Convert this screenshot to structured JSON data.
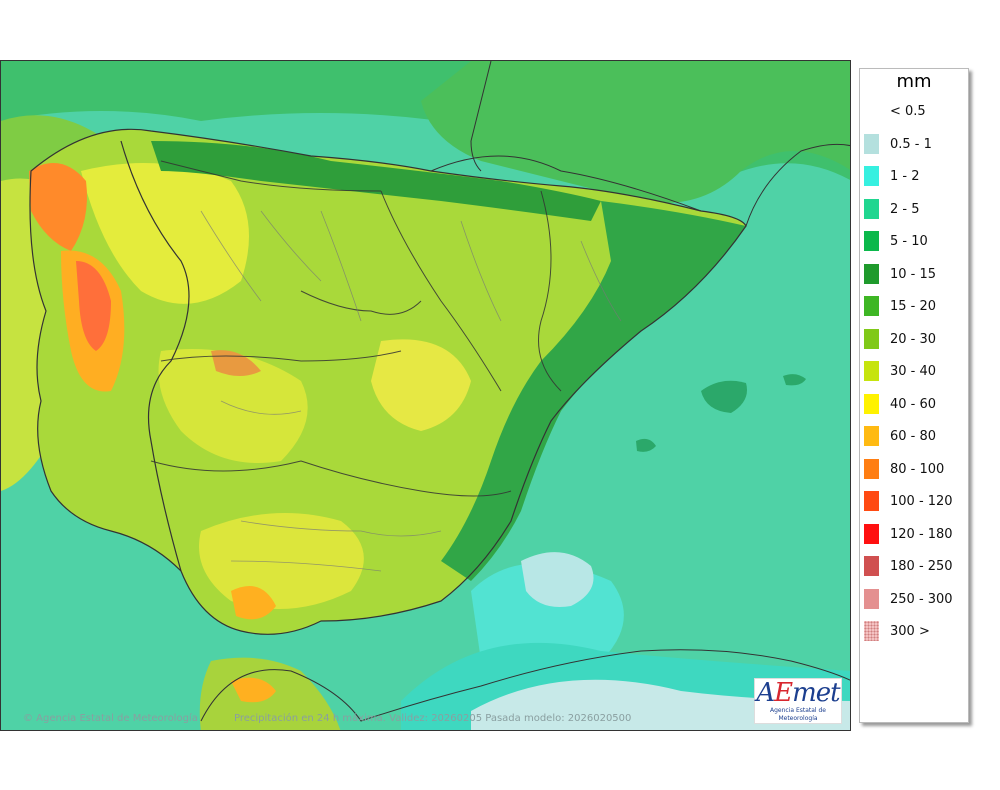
{
  "map": {
    "copyright": "© Agencia Estatal de Meteorología",
    "caption": "Precipitación en 24 h máxima. Validez: 20260205 Pasada modelo: 2026020500",
    "logo": {
      "text_a": "A",
      "text_e": "E",
      "text_rest": "met",
      "subtitle": "Agencia Estatal de Meteorología"
    }
  },
  "legend": {
    "title": "mm",
    "items": [
      {
        "label": "< 0.5",
        "color": "#ffffff"
      },
      {
        "label": "0.5 - 1",
        "color": "#b4e0de"
      },
      {
        "label": "1 - 2",
        "color": "#36f0e0"
      },
      {
        "label": "2 - 5",
        "color": "#20d690"
      },
      {
        "label": "5 - 10",
        "color": "#0bb84b"
      },
      {
        "label": "10 - 15",
        "color": "#1f9a2c"
      },
      {
        "label": "15 - 20",
        "color": "#3eb624"
      },
      {
        "label": "20 - 30",
        "color": "#80c918"
      },
      {
        "label": "30 - 40",
        "color": "#c6e40e"
      },
      {
        "label": "40 - 60",
        "color": "#fff200"
      },
      {
        "label": "60 - 80",
        "color": "#ffba12"
      },
      {
        "label": "80 - 100",
        "color": "#ff7e12"
      },
      {
        "label": "100 - 120",
        "color": "#ff4a12"
      },
      {
        "label": "120 - 180",
        "color": "#ff1010"
      },
      {
        "label": "180 - 250",
        "color": "#d05050"
      },
      {
        "label": "250 - 300",
        "color": "#e49090"
      },
      {
        "label": "300 >",
        "color": "#f4c2c2"
      }
    ]
  }
}
